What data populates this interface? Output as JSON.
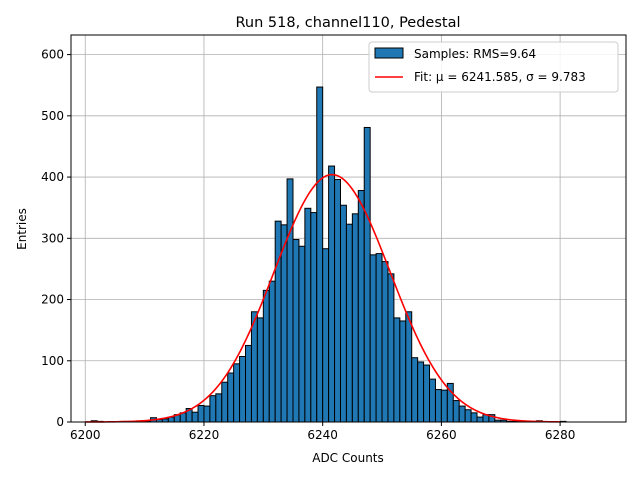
{
  "chart_data": {
    "type": "bar",
    "title": "Run 518, channel110, Pedestal",
    "xlabel": "ADC Counts",
    "ylabel": "Entries",
    "xlim": [
      6197.6,
      6291.1
    ],
    "ylim": [
      0,
      632
    ],
    "xticks": [
      6200,
      6220,
      6240,
      6260,
      6280
    ],
    "yticks": [
      0,
      100,
      200,
      300,
      400,
      500,
      600
    ],
    "grid": true,
    "legend_position": "top-right",
    "bin_width": 1,
    "bins": {
      "x": [
        6201,
        6202,
        6203,
        6204,
        6205,
        6206,
        6207,
        6208,
        6209,
        6210,
        6211,
        6212,
        6213,
        6214,
        6215,
        6216,
        6217,
        6218,
        6219,
        6220,
        6221,
        6222,
        6223,
        6224,
        6225,
        6226,
        6227,
        6228,
        6229,
        6230,
        6231,
        6232,
        6233,
        6234,
        6235,
        6236,
        6237,
        6238,
        6239,
        6240,
        6241,
        6242,
        6243,
        6244,
        6245,
        6246,
        6247,
        6248,
        6249,
        6250,
        6251,
        6252,
        6253,
        6254,
        6255,
        6256,
        6257,
        6258,
        6259,
        6260,
        6261,
        6262,
        6263,
        6264,
        6265,
        6266,
        6267,
        6268,
        6269,
        6270,
        6271,
        6272,
        6273,
        6274,
        6275,
        6276,
        6277,
        6278,
        6279,
        6280
      ],
      "values": [
        2,
        1,
        0,
        0,
        0,
        1,
        0,
        0,
        1,
        1,
        7,
        4,
        5,
        8,
        12,
        15,
        22,
        16,
        27,
        26,
        43,
        46,
        65,
        80,
        95,
        107,
        125,
        180,
        170,
        215,
        230,
        328,
        322,
        397,
        298,
        287,
        349,
        342,
        547,
        283,
        418,
        396,
        354,
        323,
        340,
        378,
        481,
        273,
        275,
        262,
        242,
        170,
        165,
        180,
        105,
        98,
        93,
        70,
        53,
        52,
        63,
        35,
        26,
        20,
        15,
        8,
        12,
        12,
        3,
        3,
        1,
        1,
        1,
        0,
        1,
        2,
        0,
        0,
        0,
        1
      ]
    },
    "series": [
      {
        "name": "Samples: RMS=9.64",
        "type": "bar",
        "color": "#1f77b4",
        "edgecolor": "#000000"
      },
      {
        "name": "Fit: μ = 6241.585, σ = 9.783",
        "type": "line",
        "color": "#ff0000",
        "mu": 6241.585,
        "sigma": 9.783,
        "amplitude": 404,
        "x_range": [
          6200,
          6280
        ]
      }
    ],
    "legend": {
      "samples_prefix": "Samples: RMS=9.64",
      "fit_label": "Fit: μ = 6241.585, σ = 9.783"
    }
  }
}
